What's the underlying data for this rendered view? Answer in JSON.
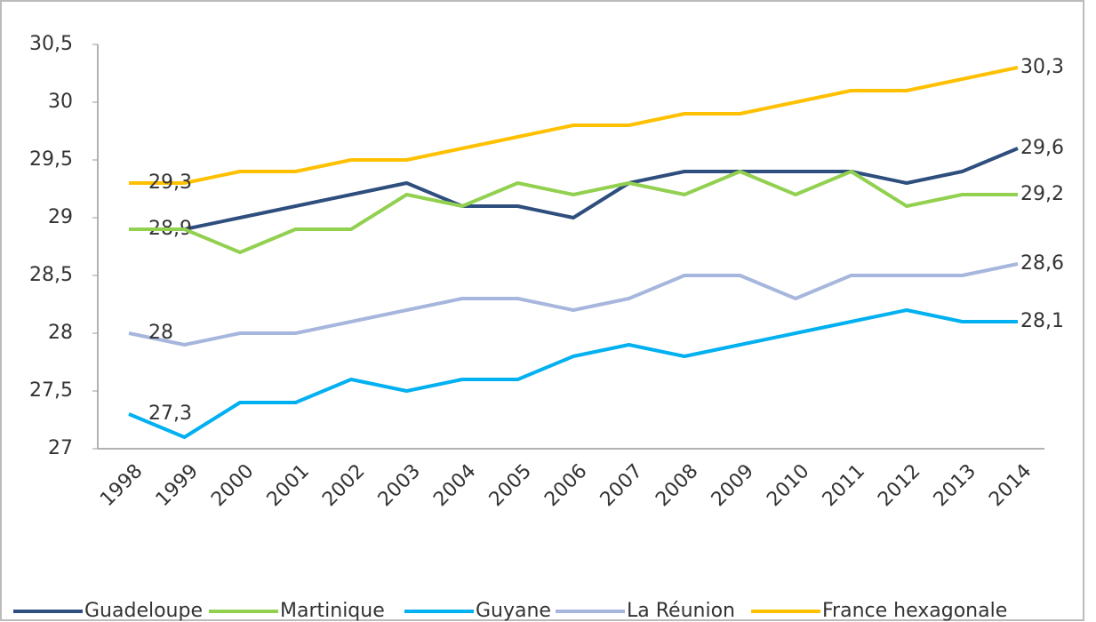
{
  "chart_data": {
    "type": "line",
    "categories": [
      "1998",
      "1999",
      "2000",
      "2001",
      "2002",
      "2003",
      "2004",
      "2005",
      "2006",
      "2007",
      "2008",
      "2009",
      "2010",
      "2011",
      "2012",
      "2013",
      "2014"
    ],
    "ylim": [
      27,
      30.5
    ],
    "yticks": [
      27,
      {
        "value": 27.5,
        "label": "27,5"
      },
      28,
      {
        "value": 28.5,
        "label": "28,5"
      },
      29,
      {
        "value": 29.5,
        "label": "29,5"
      },
      30,
      {
        "value": 30.5,
        "label": "30,5"
      }
    ],
    "grid": false,
    "legend": "bottom",
    "series": [
      {
        "name": "Guadeloupe",
        "color": "#2e4e7e",
        "values": [
          28.9,
          28.9,
          29.0,
          29.1,
          29.2,
          29.3,
          29.1,
          29.1,
          29.0,
          29.3,
          29.4,
          29.4,
          29.4,
          29.4,
          29.3,
          29.4,
          29.6
        ],
        "value_labels": [
          "28,9",
          null,
          null,
          null,
          null,
          null,
          null,
          null,
          null,
          null,
          null,
          null,
          null,
          null,
          null,
          null,
          "29,6"
        ]
      },
      {
        "name": "Martinique",
        "color": "#92d050",
        "values": [
          28.9,
          28.9,
          28.7,
          28.9,
          28.9,
          29.2,
          29.1,
          29.3,
          29.2,
          29.3,
          29.2,
          29.4,
          29.2,
          29.4,
          29.1,
          29.2,
          29.2
        ],
        "value_labels": [
          null,
          null,
          null,
          null,
          null,
          null,
          null,
          null,
          null,
          null,
          null,
          null,
          null,
          null,
          null,
          null,
          "29,2"
        ]
      },
      {
        "name": "Guyane",
        "color": "#00b0f0",
        "values": [
          27.3,
          27.1,
          27.4,
          27.4,
          27.6,
          27.5,
          27.6,
          27.6,
          27.8,
          27.9,
          27.8,
          27.9,
          28.0,
          28.1,
          28.2,
          28.1,
          28.1
        ],
        "value_labels": [
          "27,3",
          null,
          null,
          null,
          null,
          null,
          null,
          null,
          null,
          null,
          null,
          null,
          null,
          null,
          null,
          null,
          "28,1"
        ]
      },
      {
        "name": "La Réunion",
        "color": "#a6b6dc",
        "values": [
          28.0,
          27.9,
          28.0,
          28.0,
          28.1,
          28.2,
          28.3,
          28.3,
          28.2,
          28.3,
          28.5,
          28.5,
          28.3,
          28.5,
          28.5,
          28.5,
          28.6
        ],
        "value_labels": [
          "28",
          null,
          null,
          null,
          null,
          null,
          null,
          null,
          null,
          null,
          null,
          null,
          null,
          null,
          null,
          null,
          "28,6"
        ]
      },
      {
        "name": "France hexagonale",
        "color": "#ffc000",
        "values": [
          29.3,
          29.3,
          29.4,
          29.4,
          29.5,
          29.5,
          29.6,
          29.7,
          29.8,
          29.8,
          29.9,
          29.9,
          30.0,
          30.1,
          30.1,
          30.2,
          30.3
        ],
        "value_labels": [
          "29,3",
          null,
          null,
          null,
          null,
          null,
          null,
          null,
          null,
          null,
          null,
          null,
          null,
          null,
          null,
          null,
          "30,3"
        ]
      }
    ]
  }
}
